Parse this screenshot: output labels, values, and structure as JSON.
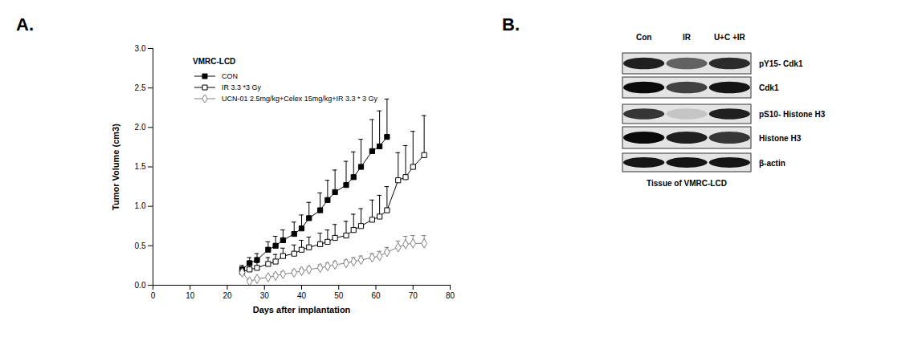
{
  "chart_data": {
    "type": "line",
    "panel_label": "A.",
    "title": "VMRC-LCD",
    "x_label": "Days after implantation",
    "y_label": "Tumor Volume (cm3)",
    "xlim": [
      0,
      80
    ],
    "xticks": [
      0,
      10,
      20,
      30,
      40,
      50,
      60,
      70,
      80
    ],
    "ylim": [
      0,
      3
    ],
    "yticks": [
      {
        "value": 0,
        "label": "0.0"
      },
      {
        "value": 0.5,
        "label": "0.5"
      },
      {
        "value": 1,
        "label": "1.0"
      },
      {
        "value": 1.5,
        "label": "1.5"
      },
      {
        "value": 2,
        "label": "2.0"
      },
      {
        "value": 2.5,
        "label": "2.5"
      },
      {
        "value": 3,
        "label": "3.0"
      }
    ],
    "grid": false,
    "legend": "top-left",
    "series": [
      {
        "name": "CON",
        "color": "#000000",
        "marker": "filled-square",
        "x": [
          24,
          26,
          28,
          31,
          33,
          35,
          38,
          40,
          42,
          45,
          47,
          49,
          52,
          54,
          56,
          59,
          61,
          63
        ],
        "values": [
          0.2,
          0.28,
          0.32,
          0.45,
          0.5,
          0.57,
          0.65,
          0.72,
          0.85,
          0.95,
          1.08,
          1.18,
          1.27,
          1.37,
          1.5,
          1.7,
          1.76,
          1.88
        ],
        "errors": [
          0.05,
          0.07,
          0.08,
          0.1,
          0.12,
          0.13,
          0.15,
          0.17,
          0.2,
          0.22,
          0.25,
          0.28,
          0.3,
          0.32,
          0.35,
          0.4,
          0.45,
          0.48
        ]
      },
      {
        "name": "IR 3.3 *3 Gy",
        "color": "#000000",
        "marker": "open-square",
        "x": [
          24,
          26,
          28,
          31,
          33,
          35,
          38,
          40,
          42,
          45,
          47,
          49,
          52,
          54,
          56,
          59,
          61,
          63,
          66,
          68,
          70,
          73
        ],
        "values": [
          0.17,
          0.2,
          0.22,
          0.27,
          0.3,
          0.37,
          0.4,
          0.45,
          0.48,
          0.52,
          0.55,
          0.6,
          0.63,
          0.7,
          0.75,
          0.83,
          0.87,
          0.95,
          1.33,
          1.37,
          1.5,
          1.65
        ],
        "errors": [
          0.05,
          0.06,
          0.07,
          0.08,
          0.09,
          0.1,
          0.11,
          0.12,
          0.13,
          0.14,
          0.15,
          0.17,
          0.18,
          0.2,
          0.22,
          0.25,
          0.27,
          0.3,
          0.35,
          0.4,
          0.45,
          0.5
        ]
      },
      {
        "name": "UCN-01 2.5mg/kg+Celex 15mg/kg+IR 3.3 * 3 Gy",
        "color": "#808080",
        "marker": "open-diamond",
        "x": [
          24,
          26,
          28,
          31,
          33,
          35,
          38,
          40,
          42,
          45,
          47,
          49,
          52,
          54,
          56,
          59,
          61,
          63,
          66,
          68,
          70,
          73
        ],
        "values": [
          0.16,
          0.05,
          0.08,
          0.1,
          0.12,
          0.14,
          0.16,
          0.18,
          0.2,
          0.22,
          0.24,
          0.26,
          0.28,
          0.3,
          0.32,
          0.35,
          0.37,
          0.42,
          0.48,
          0.52,
          0.53,
          0.53
        ],
        "errors": [
          0.03,
          0.02,
          0.02,
          0.02,
          0.03,
          0.03,
          0.03,
          0.03,
          0.03,
          0.04,
          0.04,
          0.04,
          0.04,
          0.05,
          0.05,
          0.05,
          0.06,
          0.06,
          0.08,
          0.1,
          0.1,
          0.1
        ]
      }
    ]
  },
  "blot": {
    "panel_label": "B.",
    "lanes": [
      "Con",
      "IR",
      "U+C +IR"
    ],
    "caption": "Tissue of VMRC-LCD",
    "rows": [
      {
        "label": "pY15- Cdk1",
        "intensity": [
          0.9,
          0.6,
          0.85
        ]
      },
      {
        "label": "Cdk1",
        "intensity": [
          1,
          0.75,
          0.95
        ]
      },
      {
        "label": "pS10- Histone H3",
        "intensity": [
          0.8,
          0.15,
          0.9
        ]
      },
      {
        "label": "Histone H3",
        "intensity": [
          1,
          0.9,
          0.8
        ]
      },
      {
        "label": "β-actin",
        "intensity": [
          0.95,
          0.95,
          0.95
        ]
      }
    ]
  }
}
